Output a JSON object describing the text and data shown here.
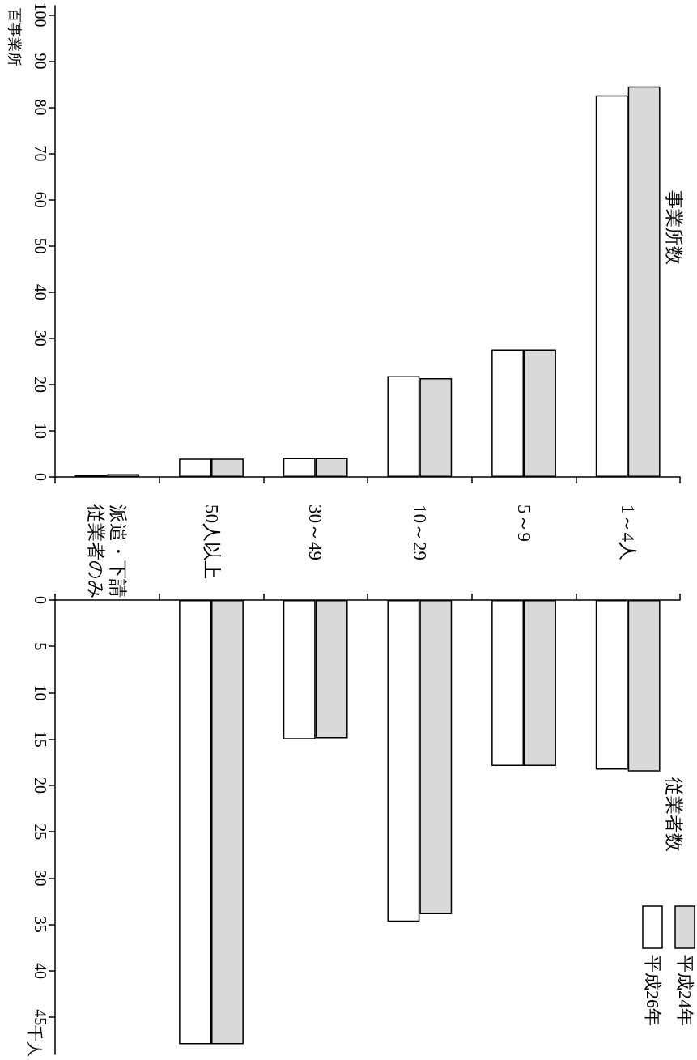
{
  "chart_data": [
    {
      "type": "bar",
      "title": "事業所数",
      "ylabel": "百事業所",
      "categories": [
        "派遣・下請従業者のみ",
        "50人以上",
        "30～49",
        "10～29",
        "5～9",
        "1～4人"
      ],
      "series": [
        {
          "color": "#ffffff",
          "values": [
            0.4,
            4.0,
            4.1,
            21.8,
            27.6,
            82.6
          ]
        },
        {
          "color": "#d9d9d9",
          "values": [
            0.6,
            4.0,
            4.1,
            21.4,
            27.6,
            84.5
          ]
        }
      ],
      "ylim": [
        0,
        102
      ],
      "yticks": [
        0,
        10,
        20,
        30,
        40,
        50,
        60,
        70,
        80,
        90,
        100
      ],
      "grid": false,
      "legend": false,
      "tick_labels": "y"
    },
    {
      "type": "bar",
      "title": "従業者数",
      "ylabel": "千人",
      "categories": [
        "派遣・下請従業者のみ",
        "50人以上",
        "30～49",
        "10～29",
        "5～9",
        "1～4人"
      ],
      "series": [
        {
          "name": "平成26年",
          "color": "#ffffff",
          "values": [
            null,
            47.9,
            15.0,
            34.7,
            17.9,
            18.3
          ]
        },
        {
          "name": "平成24年",
          "color": "#d9d9d9",
          "values": [
            null,
            47.9,
            14.9,
            33.9,
            17.9,
            18.5
          ]
        }
      ],
      "ylim": [
        49,
        0
      ],
      "yticks": [
        0,
        5,
        10,
        15,
        20,
        25,
        30,
        35,
        40,
        45
      ],
      "grid": false,
      "legend": "bottom right"
    }
  ]
}
